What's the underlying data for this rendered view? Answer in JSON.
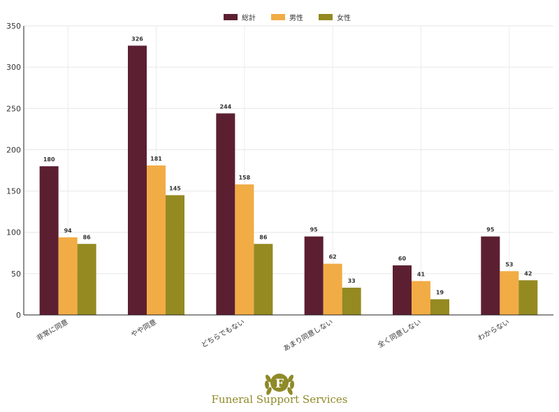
{
  "chart_data": {
    "type": "bar",
    "categories": [
      "非常に同意",
      "やや同意",
      "どちらでもない",
      "あまり同意しない",
      "全く同意しない",
      "わからない"
    ],
    "series": [
      {
        "name": "総計",
        "color": "#5c1f32",
        "values": [
          180,
          326,
          244,
          95,
          60,
          95
        ]
      },
      {
        "name": "男性",
        "color": "#f1ac45",
        "values": [
          94,
          181,
          158,
          62,
          41,
          53
        ]
      },
      {
        "name": "女性",
        "color": "#948a21",
        "values": [
          86,
          145,
          86,
          33,
          19,
          42
        ]
      }
    ],
    "ylim": [
      0,
      350
    ],
    "yticks": [
      0,
      50,
      100,
      150,
      200,
      250,
      300,
      350
    ],
    "grid": true,
    "legend_position": "top-center"
  },
  "brand": {
    "logo_letter": "F",
    "name": "Funeral Support Services"
  }
}
